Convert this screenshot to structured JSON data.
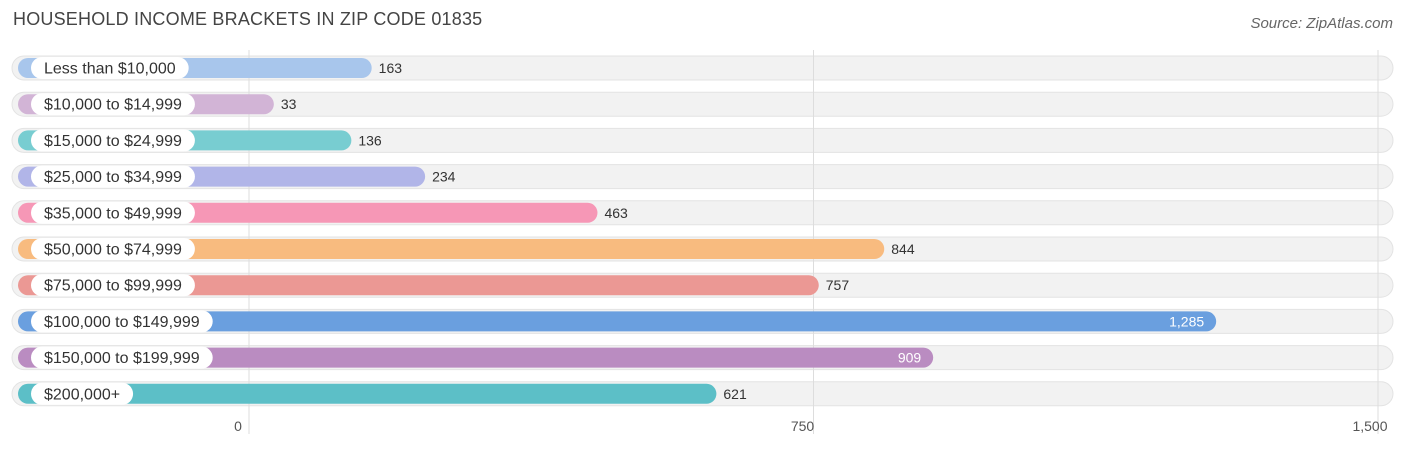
{
  "title": "HOUSEHOLD INCOME BRACKETS IN ZIP CODE 01835",
  "source": "Source: ZipAtlas.com",
  "chart_data": {
    "type": "bar",
    "orientation": "horizontal",
    "categories": [
      "Less than $10,000",
      "$10,000 to $14,999",
      "$15,000 to $24,999",
      "$25,000 to $34,999",
      "$35,000 to $49,999",
      "$50,000 to $74,999",
      "$75,000 to $99,999",
      "$100,000 to $149,999",
      "$150,000 to $199,999",
      "$200,000+"
    ],
    "values": [
      163,
      33,
      136,
      234,
      463,
      844,
      757,
      1285,
      909,
      621
    ],
    "value_labels": [
      "163",
      "33",
      "136",
      "234",
      "463",
      "844",
      "757",
      "1,285",
      "909",
      "621"
    ],
    "colors": [
      "#a8c6ec",
      "#d2b4d6",
      "#78cdd1",
      "#b1b5e8",
      "#f697b6",
      "#f8bb7f",
      "#eb9894",
      "#6a9fdf",
      "#ba8cc1",
      "#5cbfc7"
    ],
    "xlim": [
      0,
      1500
    ],
    "xticks": [
      0,
      750,
      1500
    ],
    "xtick_labels": [
      "0",
      "750",
      "1,500"
    ],
    "grid": true,
    "xlabel": "",
    "ylabel": ""
  }
}
